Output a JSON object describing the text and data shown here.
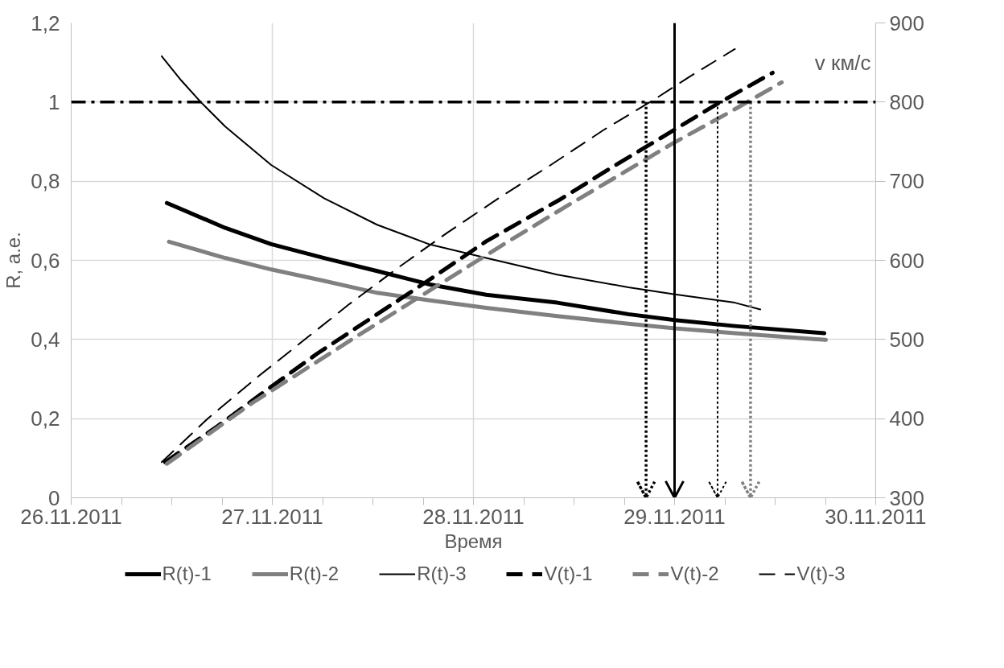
{
  "chart_data": {
    "type": "line",
    "xlabel": "Время",
    "ylabel": "R, а.е.",
    "y2label": "v км/с",
    "xlim": [
      "2011-11-26",
      "2011-11-30"
    ],
    "xticks": [
      {
        "value": "2011-11-26",
        "label": "26.11.2011"
      },
      {
        "value": "2011-11-26T06:00",
        "label": null
      },
      {
        "value": "2011-11-26T12:00",
        "label": null
      },
      {
        "value": "2011-11-26T18:00",
        "label": null
      },
      {
        "value": "2011-11-27",
        "label": "27.11.2011"
      },
      {
        "value": "2011-11-27T06:00",
        "label": null
      },
      {
        "value": "2011-11-27T12:00",
        "label": null
      },
      {
        "value": "2011-11-27T18:00",
        "label": null
      },
      {
        "value": "2011-11-28",
        "label": "28.11.2011"
      },
      {
        "value": "2011-11-28T06:00",
        "label": null
      },
      {
        "value": "2011-11-28T12:00",
        "label": null
      },
      {
        "value": "2011-11-28T18:00",
        "label": null
      },
      {
        "value": "2011-11-29",
        "label": "29.11.2011"
      },
      {
        "value": "2011-11-29T06:00",
        "label": null
      },
      {
        "value": "2011-11-29T12:00",
        "label": null
      },
      {
        "value": "2011-11-29T18:00",
        "label": null
      },
      {
        "value": "2011-11-30",
        "label": "30.11.2011"
      }
    ],
    "ylim": [
      0,
      1.2
    ],
    "yticks": [
      {
        "value": 0,
        "label": "0"
      },
      {
        "value": 0.2,
        "label": "0,2"
      },
      {
        "value": 0.4,
        "label": "0,4"
      },
      {
        "value": 0.6,
        "label": "0,6"
      },
      {
        "value": 0.8,
        "label": "0,8"
      },
      {
        "value": 1,
        "label": "1"
      },
      {
        "value": 1.2,
        "label": "1,2"
      }
    ],
    "y2lim": [
      300,
      900
    ],
    "y2ticks": [
      300,
      400,
      500,
      600,
      700,
      800,
      900
    ],
    "grid": true,
    "legend": "bottom",
    "line_style": "solid",
    "marker": "none",
    "series": [
      {
        "name": "R(t)-1",
        "color": "#000000",
        "x": [
          "2011-11-26T11:25",
          "2011-11-26T18:23",
          "2011-11-26T23:52",
          "2011-11-27T06:11",
          "2011-11-27T12:30",
          "2011-11-27T18:49",
          "2011-11-28T01:31",
          "2011-11-28T10:00",
          "2011-11-28T18:29",
          "2011-11-29T00:03",
          "2011-11-29T07:12",
          "2011-11-29T17:52"
        ],
        "values": [
          0.745,
          0.682,
          0.641,
          0.606,
          0.573,
          0.539,
          0.513,
          0.493,
          0.464,
          0.449,
          0.434,
          0.416
        ]
      },
      {
        "name": "R(t)-2",
        "color": "#808080",
        "x": [
          "2011-11-26T11:40",
          "2011-11-26T18:23",
          "2011-11-26T23:52",
          "2011-11-27T06:11",
          "2011-11-27T12:30",
          "2011-11-27T18:49",
          "2011-11-28T01:31",
          "2011-11-28T10:00",
          "2011-11-28T18:29",
          "2011-11-29T00:03",
          "2011-11-29T07:12",
          "2011-11-29T18:03"
        ],
        "values": [
          0.647,
          0.606,
          0.577,
          0.548,
          0.518,
          0.499,
          0.48,
          0.459,
          0.44,
          0.428,
          0.416,
          0.399
        ]
      },
      {
        "name": "R(t)-3",
        "color": "#000000",
        "line_style": "solid",
        "x": [
          "2011-11-26T10:48",
          "2011-11-26T13:07",
          "2011-11-26T15:28",
          "2011-11-26T18:23",
          "2011-11-26T23:52",
          "2011-11-27T06:11",
          "2011-11-27T12:30",
          "2011-11-27T18:49",
          "2011-11-28T01:31",
          "2011-11-28T10:00",
          "2011-11-28T18:29",
          "2011-11-29T00:03",
          "2011-11-29T07:12",
          "2011-11-29T10:14"
        ],
        "values": [
          1.116,
          1.055,
          1.0,
          0.938,
          0.841,
          0.757,
          0.69,
          0.64,
          0.606,
          0.564,
          0.532,
          0.514,
          0.493,
          0.476
        ]
      },
      {
        "name": "V(t)-1",
        "color": "#000000",
        "axis": "y2",
        "line_style": "dashed",
        "x": [
          "2011-11-26T11:13",
          "2011-11-26T17:32",
          "2011-11-26T23:26",
          "2011-11-27T05:20",
          "2011-11-27T11:39",
          "2011-11-27T17:58",
          "2011-11-28T01:31",
          "2011-11-28T10:11",
          "2011-11-28T16:36",
          "2011-11-28T22:44",
          "2011-11-29T05:08",
          "2011-11-29T11:42"
        ],
        "values": [
          345,
          391,
          437,
          482,
          526,
          570,
          624,
          676,
          718,
          757,
          798,
          837
        ]
      },
      {
        "name": "V(t)-2",
        "color": "#808080",
        "axis": "y2",
        "line_style": "dashed",
        "x": [
          "2011-11-26T11:25",
          "2011-11-26T21:30",
          "2011-11-27T09:46",
          "2011-11-27T22:24",
          "2011-11-28T04:29",
          "2011-11-28T11:02",
          "2011-11-28T17:27",
          "2011-11-28T23:49",
          "2011-11-29T06:22",
          "2011-11-29T12:47"
        ],
        "values": [
          343,
          419,
          502,
          586,
          626,
          668,
          708,
          748,
          786,
          825
        ]
      },
      {
        "name": "V(t)-3",
        "color": "#000000",
        "axis": "y2",
        "line_style": "dashed",
        "x": [
          "2011-11-26T10:48",
          "2011-11-26T16:17",
          "2011-11-26T22:10",
          "2011-11-27T03:38",
          "2011-11-27T09:06",
          "2011-11-27T15:03",
          "2011-11-27T20:53",
          "2011-11-28T03:13",
          "2011-11-28T09:09",
          "2011-11-28T15:34",
          "2011-11-28T21:41",
          "2011-11-29T01:56",
          "2011-11-29T07:12"
        ],
        "values": [
          345,
          400,
          452,
          498,
          544,
          591,
          635,
          680,
          720,
          765,
          804,
          833,
          867
        ]
      }
    ],
    "ref_lines": [
      {
        "axis": "y",
        "value": 1,
        "color": "#000000",
        "line_style": "dashdot"
      },
      {
        "axis": "x",
        "value": "2011-11-29T00:00",
        "color": "#000000",
        "line_style": "solid"
      },
      {
        "axis": "x",
        "value": "2011-11-28T20:36",
        "color": "#000000",
        "line_style": "dotted"
      },
      {
        "axis": "x",
        "value": "2011-11-29T05:08",
        "color": "#000000",
        "line_style": "dotted"
      },
      {
        "axis": "x",
        "value": "2011-11-29T09:04",
        "color": "#808080",
        "line_style": "dotted"
      }
    ]
  }
}
